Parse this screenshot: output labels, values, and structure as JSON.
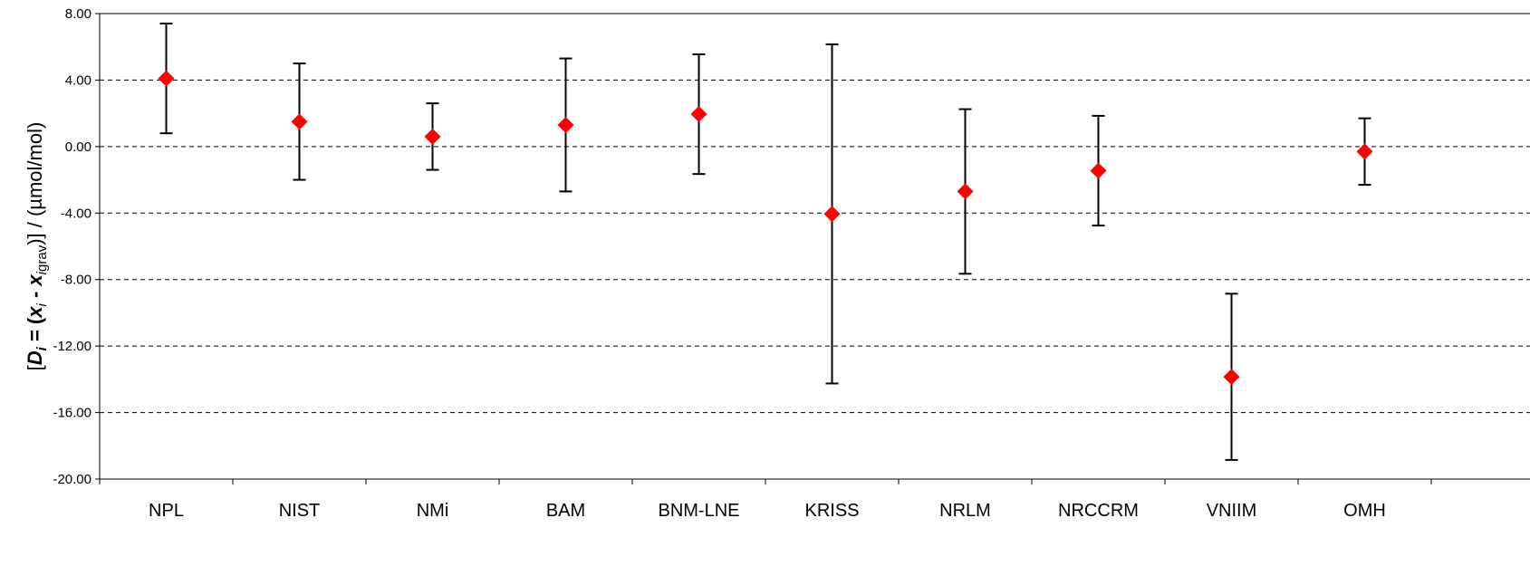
{
  "chart_data": {
    "type": "scatter",
    "categories": [
      "NPL",
      "NIST",
      "NMi",
      "BAM",
      "BNM-LNE",
      "KRISS",
      "NRLM",
      "NRCCRM",
      "VNIIM",
      "OMH"
    ],
    "values": [
      4.1,
      1.5,
      0.6,
      1.3,
      1.95,
      -4.05,
      -2.7,
      -1.45,
      -13.85,
      -0.3
    ],
    "uncertainties": [
      3.3,
      3.5,
      2.0,
      4.0,
      3.6,
      10.2,
      4.95,
      3.3,
      5.0,
      2.0
    ],
    "ylim": [
      -20,
      8
    ],
    "yticks": [
      "8.00",
      "4.00",
      "0.00",
      "-4.00",
      "-8.00",
      "-12.00",
      "-16.00",
      "-20.00"
    ],
    "ytick_values": [
      8,
      4,
      0,
      -4,
      -8,
      -12,
      -16,
      -20
    ],
    "grid": "horizontal-dashed",
    "ylabel_parts": {
      "open": "[",
      "D": "D",
      "i": "i",
      "eq": " = (",
      "x": "x",
      "minus": " - ",
      "x2": "x",
      "sub2": "i",
      "grav": "grav",
      "close": ")] / (µmol/mol)"
    },
    "marker_color": "#ff0000",
    "errorbar_color": "#000000"
  }
}
